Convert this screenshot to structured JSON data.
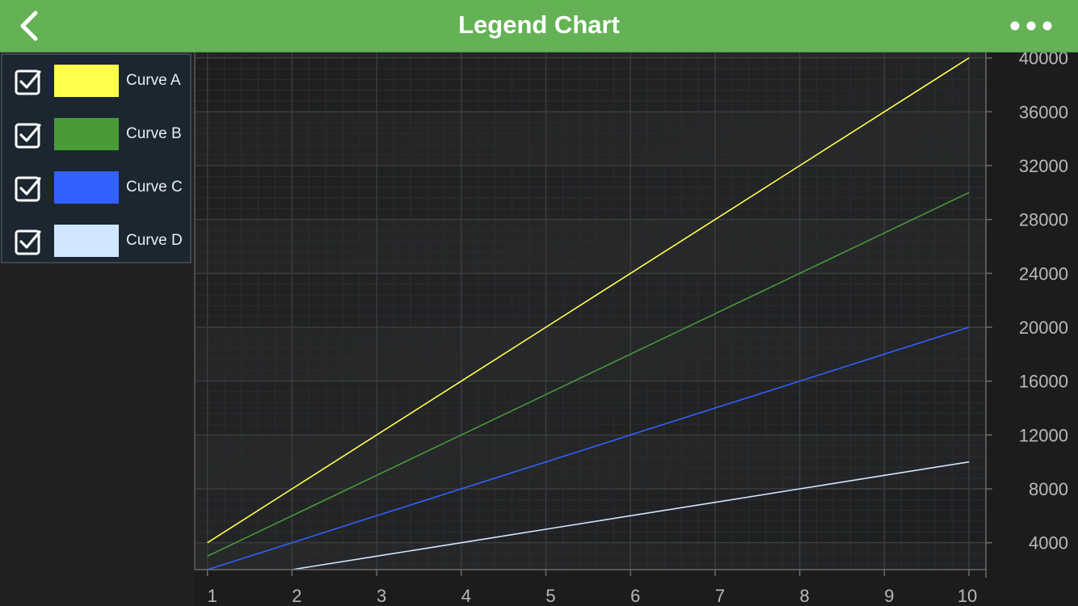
{
  "header": {
    "title": "Legend Chart",
    "back_icon": "chevron-left-icon",
    "more_icon": "more-horizontal-icon",
    "color": "#64b255"
  },
  "legend": {
    "items": [
      {
        "label": "Curve A",
        "checked": true,
        "color": "#ffff4d"
      },
      {
        "label": "Curve B",
        "checked": true,
        "color": "#4a9a38"
      },
      {
        "label": "Curve C",
        "checked": true,
        "color": "#3361ff"
      },
      {
        "label": "Curve D",
        "checked": true,
        "color": "#d1e6ff"
      }
    ]
  },
  "chart_data": {
    "type": "line",
    "title": "",
    "xlabel": "",
    "ylabel": "",
    "xlim": [
      0.85,
      10.2
    ],
    "ylim": [
      2000,
      40400
    ],
    "x_ticks": [
      "1",
      "2",
      "3",
      "4",
      "5",
      "6",
      "7",
      "8",
      "9",
      "10"
    ],
    "y_ticks": [
      "4000",
      "8000",
      "12000",
      "16000",
      "20000",
      "24000",
      "28000",
      "32000",
      "36000",
      "40000"
    ],
    "y_axis_side": "right",
    "grid": true,
    "legend_position": "top-left, outside plot",
    "x": [
      1,
      2,
      3,
      4,
      5,
      6,
      7,
      8,
      9,
      10
    ],
    "series": [
      {
        "name": "Curve A",
        "color": "#ffff4d",
        "values": [
          4000,
          8000,
          12000,
          16000,
          20000,
          24000,
          28000,
          32000,
          36000,
          40000
        ]
      },
      {
        "name": "Curve B",
        "color": "#4a9a38",
        "values": [
          3000,
          6000,
          9000,
          12000,
          15000,
          18000,
          21000,
          24000,
          27000,
          30000
        ]
      },
      {
        "name": "Curve C",
        "color": "#3361ff",
        "values": [
          2000,
          4000,
          6000,
          8000,
          10000,
          12000,
          14000,
          16000,
          18000,
          20000
        ]
      },
      {
        "name": "Curve D",
        "color": "#d1e6ff",
        "values": [
          1000,
          2000,
          3000,
          4000,
          5000,
          6000,
          7000,
          8000,
          9000,
          10000
        ]
      }
    ]
  }
}
